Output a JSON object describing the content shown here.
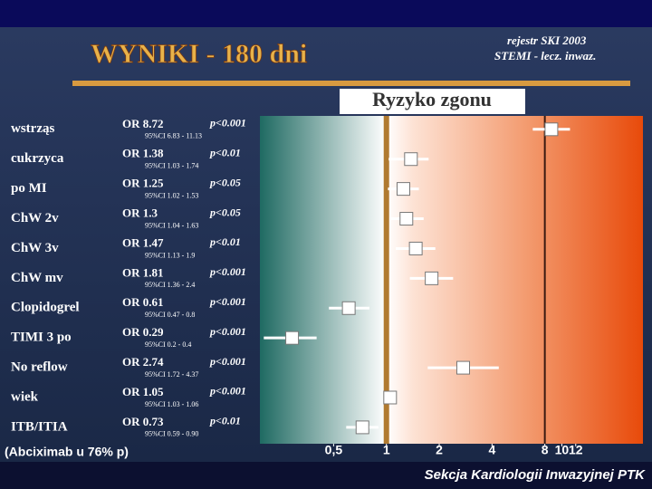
{
  "chart_data": {
    "type": "forest",
    "title": "WYNIKI - 180 dni",
    "subtitle": [
      "rejestr SKI 2003",
      "STEMI - lecz. inwaz."
    ],
    "panel_title": "Ryzyko zgonu",
    "categories": [
      "wstrząs",
      "cukrzyca",
      "po  MI",
      "ChW 2v",
      "ChW 3v",
      "ChW mv",
      "Clopidogrel",
      "TIMI 3 po",
      "No reflow",
      "wiek",
      "ITB/ITIA"
    ],
    "values": [
      8.72,
      1.38,
      1.25,
      1.3,
      1.47,
      1.81,
      0.61,
      0.29,
      2.74,
      1.05,
      0.73
    ],
    "value_labels": [
      "OR 8.72",
      "OR 1.38",
      "OR 1.25",
      "OR 1.3",
      "OR 1.47",
      "OR 1.81",
      "OR 0.61",
      "OR 0.29",
      "OR 2.74",
      "OR 1.05",
      "OR 0.73"
    ],
    "p_labels": [
      "p<0.001",
      "p<0.01",
      "p<0.05",
      "p<0.05",
      "p<0.01",
      "p<0.001",
      "p<0.001",
      "p<0.001",
      "p<0.001",
      "p<0.001",
      "p<0.01"
    ],
    "ci_low": [
      6.83,
      1.03,
      1.02,
      1.04,
      1.13,
      1.36,
      0.47,
      0.2,
      1.72,
      1.03,
      0.59
    ],
    "ci_high": [
      11.13,
      1.74,
      1.53,
      1.63,
      1.9,
      2.4,
      0.8,
      0.4,
      4.37,
      1.06,
      0.9
    ],
    "ci_labels": [
      "95%CI 6.83 - 11.13",
      "95%CI 1.03 - 1.74",
      "95%CI 1.02 - 1.53",
      "95%CI 1.04 - 1.63",
      "95%CI 1.13 - 1.9",
      "95%CI 1.36 - 2.4",
      "95%CI 0.47 - 0.8",
      "95%CI 0.2 - 0.4",
      "95%CI 1.72 - 4.37",
      "95%CI 1.03 - 1.06",
      "95%CI 0.59 - 0.90"
    ],
    "xscale": "log",
    "xlim": [
      0.19,
      29
    ],
    "xticks": [
      {
        "value": 0.5,
        "label": "0,5"
      },
      1,
      2,
      4,
      8,
      10,
      12
    ],
    "reference_lines": [
      1,
      8
    ],
    "note": "(Abciximab u 76% p)",
    "footer": "Sekcja Kardiologii Inwazyjnej PTK",
    "color": "#ffffff"
  }
}
